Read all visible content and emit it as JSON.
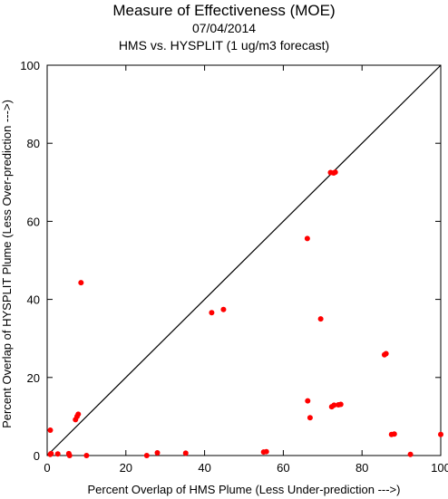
{
  "chart_data": {
    "type": "scatter",
    "title": "Measure of Effectiveness (MOE)",
    "date": "07/04/2014",
    "subtitle": "HMS vs. HYSPLIT  (1 ug/m3 forecast)",
    "xlabel": "Percent Overlap of HMS Plume (Less Under-prediction --->)",
    "ylabel": "Percent Overlap of HYSPLIT Plume (Less Over-prediction --->)",
    "xlim": [
      0,
      100
    ],
    "ylim": [
      0,
      100
    ],
    "xticks": [
      0,
      20,
      40,
      60,
      80,
      100
    ],
    "yticks": [
      0,
      20,
      40,
      60,
      80,
      100
    ],
    "grid": false,
    "reference_line": {
      "from": [
        0,
        0
      ],
      "to": [
        100,
        100
      ]
    },
    "point_color": "#ff0000",
    "points": [
      [
        0.8,
        0.3
      ],
      [
        0.8,
        6.5
      ],
      [
        1.0,
        0.5
      ],
      [
        2.7,
        0.4
      ],
      [
        5.5,
        0.5
      ],
      [
        5.7,
        0.0
      ],
      [
        7.2,
        9.2
      ],
      [
        7.6,
        10.0
      ],
      [
        7.9,
        10.6
      ],
      [
        8.6,
        44.3
      ],
      [
        10.0,
        0.0
      ],
      [
        25.3,
        0.0
      ],
      [
        28.0,
        0.7
      ],
      [
        35.2,
        0.6
      ],
      [
        41.8,
        36.6
      ],
      [
        44.8,
        37.4
      ],
      [
        55.0,
        0.9
      ],
      [
        55.7,
        1.0
      ],
      [
        66.1,
        55.6
      ],
      [
        66.2,
        14.0
      ],
      [
        66.8,
        9.7
      ],
      [
        69.5,
        35.0
      ],
      [
        72.0,
        72.5
      ],
      [
        72.8,
        72.4
      ],
      [
        73.2,
        72.6
      ],
      [
        72.3,
        12.5
      ],
      [
        72.9,
        12.9
      ],
      [
        74.0,
        13.0
      ],
      [
        74.6,
        13.1
      ],
      [
        85.7,
        25.8
      ],
      [
        86.1,
        26.1
      ],
      [
        87.5,
        5.4
      ],
      [
        88.2,
        5.5
      ],
      [
        92.3,
        0.3
      ],
      [
        100.0,
        5.4
      ]
    ]
  }
}
